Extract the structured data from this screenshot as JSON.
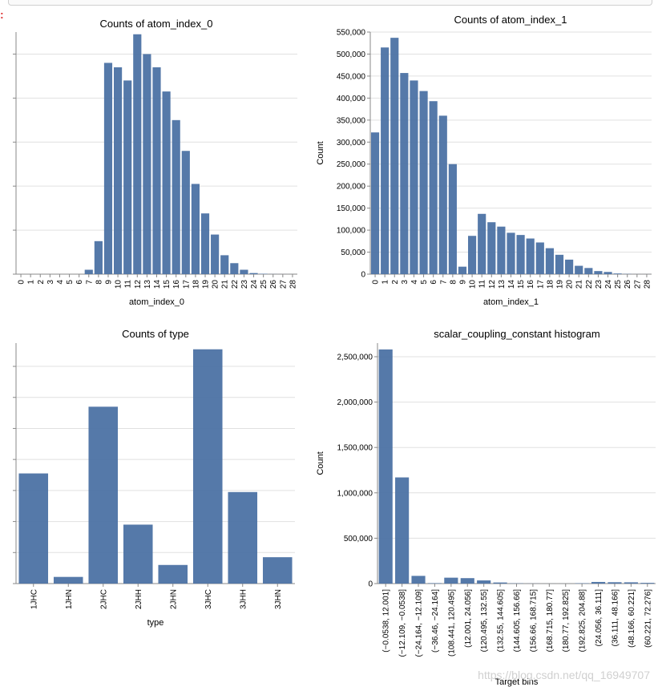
{
  "page": {
    "cell_marker": ":",
    "watermark": "https://blog.csdn.net/qq_16949707"
  },
  "chart_data": [
    {
      "type": "bar",
      "title": "Counts of atom_index_0",
      "xlabel": "atom_index_0",
      "ylabel": "",
      "show_y_tick_labels": false,
      "ylim": [
        0,
        550000
      ],
      "y_ticks": [
        0,
        100000,
        200000,
        300000,
        400000,
        500000
      ],
      "categories": [
        "0",
        "1",
        "2",
        "3",
        "4",
        "5",
        "6",
        "7",
        "8",
        "9",
        "10",
        "11",
        "12",
        "13",
        "14",
        "15",
        "16",
        "17",
        "18",
        "19",
        "20",
        "21",
        "22",
        "23",
        "24",
        "25",
        "26",
        "27",
        "28"
      ],
      "values": [
        0,
        0,
        0,
        0,
        0,
        0,
        0,
        10000,
        75000,
        480000,
        470000,
        440000,
        545000,
        500000,
        470000,
        415000,
        350000,
        280000,
        205000,
        138000,
        90000,
        43000,
        25000,
        10000,
        2500,
        800,
        200,
        50,
        10
      ]
    },
    {
      "type": "bar",
      "title": "Counts of atom_index_1",
      "xlabel": "atom_index_1",
      "ylabel": "Count",
      "show_y_tick_labels": true,
      "ylim": [
        0,
        550000
      ],
      "y_ticks": [
        0,
        50000,
        100000,
        150000,
        200000,
        250000,
        300000,
        350000,
        400000,
        450000,
        500000,
        550000
      ],
      "y_tick_labels": [
        "0",
        "50,000",
        "100,000",
        "150,000",
        "200,000",
        "250,000",
        "300,000",
        "350,000",
        "400,000",
        "450,000",
        "500,000",
        "550,000"
      ],
      "categories": [
        "0",
        "1",
        "2",
        "3",
        "4",
        "5",
        "6",
        "7",
        "8",
        "9",
        "10",
        "11",
        "12",
        "13",
        "14",
        "15",
        "16",
        "17",
        "18",
        "19",
        "20",
        "21",
        "22",
        "23",
        "24",
        "25",
        "26",
        "27",
        "28"
      ],
      "values": [
        322000,
        515000,
        537000,
        457000,
        440000,
        416000,
        393000,
        360000,
        250000,
        17000,
        87000,
        137000,
        118000,
        108000,
        94000,
        89000,
        81000,
        72000,
        59000,
        44000,
        33000,
        19000,
        14000,
        7000,
        5000,
        1500,
        500,
        100,
        20
      ]
    },
    {
      "type": "bar",
      "title": "Counts of type",
      "xlabel": "type",
      "ylabel": "",
      "show_y_tick_labels": false,
      "ylim": [
        0,
        1550000
      ],
      "y_ticks": [
        0,
        200000,
        400000,
        600000,
        800000,
        1000000,
        1200000,
        1400000
      ],
      "categories": [
        "1JHC",
        "1JHN",
        "2JHC",
        "2JHH",
        "2JHN",
        "3JHC",
        "3JHH",
        "3JHN"
      ],
      "values": [
        710000,
        43000,
        1140000,
        380000,
        120000,
        1510000,
        590000,
        170000
      ]
    },
    {
      "type": "bar",
      "title": "scalar_coupling_constant histogram",
      "xlabel": "Target bins",
      "ylabel": "Count",
      "show_y_tick_labels": true,
      "ylim": [
        0,
        2650000
      ],
      "y_ticks": [
        0,
        500000,
        1000000,
        1500000,
        2000000,
        2500000
      ],
      "y_tick_labels": [
        "0",
        "500,000",
        "1,000,000",
        "1,500,000",
        "2,000,000",
        "2,500,000"
      ],
      "categories": [
        "(−0.0538, 12.001]",
        "(−12.109, −0.0538]",
        "(−24.164, −12.109]",
        "(−36.46, −24.164]",
        "(108.441, 120.495]",
        "(12.001, 24.056]",
        "(120.495, 132.55]",
        "(132.55, 144.605]",
        "(144.605, 156.66]",
        "(156.66, 168.715]",
        "(168.715, 180.77]",
        "(180.77, 192.825]",
        "(192.825, 204.88]",
        "(24.056, 36.111]",
        "(36.111, 48.166]",
        "(48.166, 60.221]",
        "(60.221, 72.276]"
      ],
      "values": [
        2580000,
        1170000,
        85000,
        5000,
        65000,
        60000,
        35000,
        12000,
        3000,
        1000,
        500,
        300,
        4000,
        18000,
        15000,
        14000,
        8000
      ]
    }
  ]
}
